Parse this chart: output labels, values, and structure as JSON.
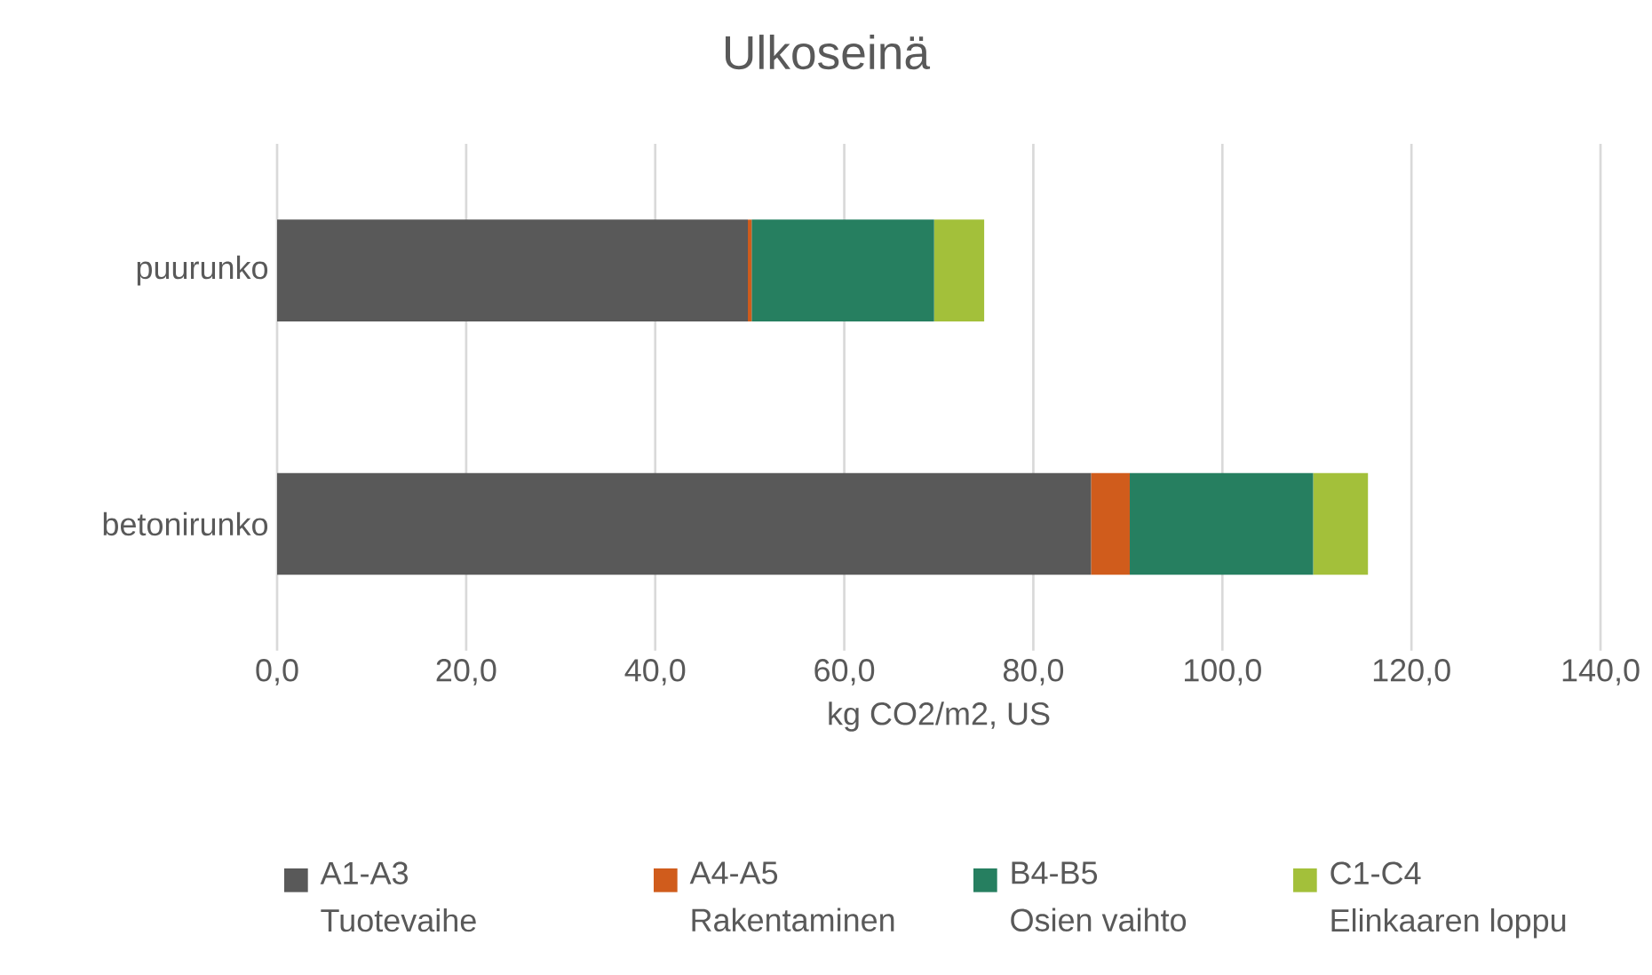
{
  "chart_data": {
    "type": "bar",
    "orientation": "horizontal",
    "stacked": true,
    "title": "Ulkoseinä",
    "xlabel": "kg CO2/m2, US",
    "categories": [
      "puurunko",
      "betonirunko"
    ],
    "series": [
      {
        "name": "A1-A3\nTuotevaihe",
        "color": "#595959",
        "values": [
          49.8,
          86.1
        ]
      },
      {
        "name": "A4-A5\nRakentaminen",
        "color": "#d05c1c",
        "values": [
          0.4,
          4.1
        ]
      },
      {
        "name": "B4-B5\nOsien vaihto",
        "color": "#267f60",
        "values": [
          19.3,
          19.4
        ]
      },
      {
        "name": "C1-C4\nElinkaaren loppu",
        "color": "#a3c03a",
        "values": [
          5.3,
          5.8
        ]
      }
    ],
    "xlim": [
      0,
      140
    ],
    "xticks": [
      {
        "value": 0,
        "label": "0,0"
      },
      {
        "value": 20,
        "label": "20,0"
      },
      {
        "value": 40,
        "label": "40,0"
      },
      {
        "value": 60,
        "label": "60,0"
      },
      {
        "value": 80,
        "label": "80,0"
      },
      {
        "value": 100,
        "label": "100,0"
      },
      {
        "value": 120,
        "label": "120,0"
      },
      {
        "value": 140,
        "label": "140,0"
      }
    ],
    "grid": "x",
    "legend": "bottom"
  }
}
